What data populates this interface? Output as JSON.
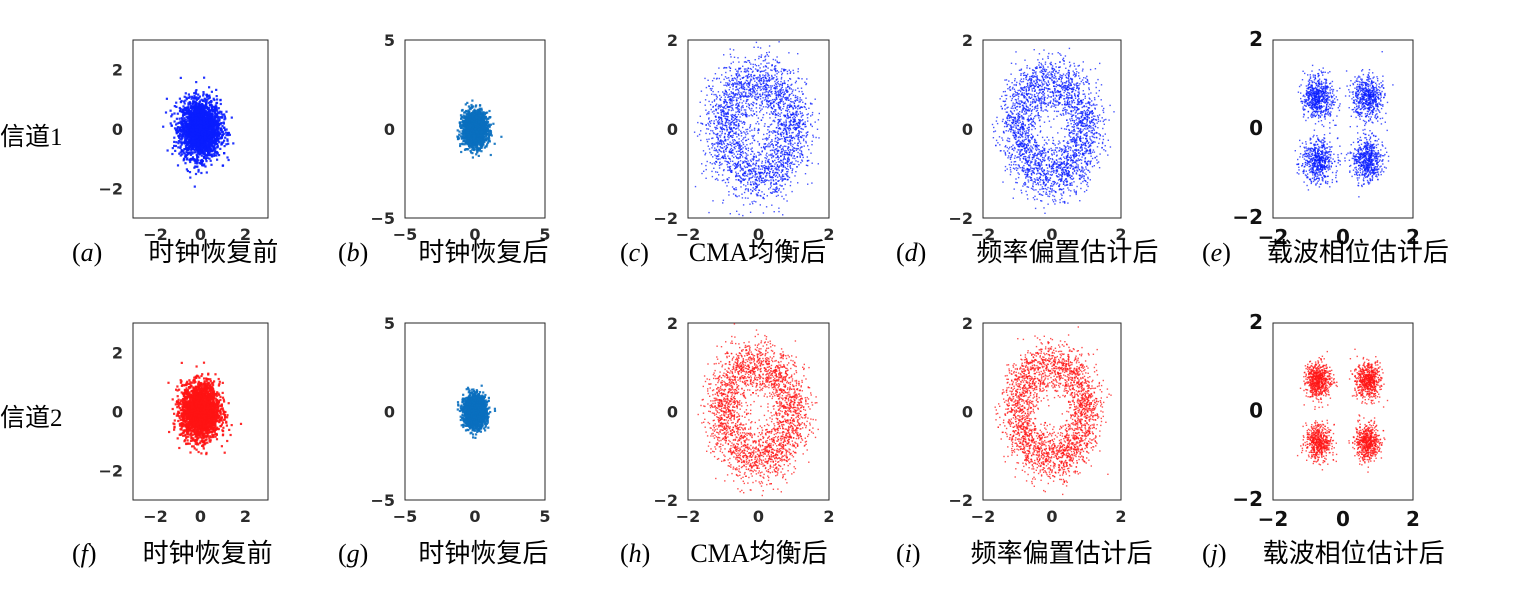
{
  "rows": [
    {
      "label": "信道1"
    },
    {
      "label": "信道2"
    }
  ],
  "colors": {
    "channel1": "#0a1eff",
    "channel2": "#ff1414",
    "resampled": "#0a6fbf"
  },
  "chart_data": [
    {
      "id": "a",
      "type": "scatter",
      "row": 0,
      "col": 0,
      "letter": "a",
      "label": "时钟恢复前",
      "shape": "disc",
      "color": "#0a1eff",
      "rx": 1.05,
      "ry": 1.15,
      "points": 2600,
      "xlim": [
        -3,
        3
      ],
      "ylim": [
        -3,
        3
      ],
      "xticks": [
        -2,
        0,
        2
      ],
      "yticks": [
        -2,
        0,
        2
      ]
    },
    {
      "id": "b",
      "type": "scatter",
      "row": 0,
      "col": 1,
      "letter": "b",
      "label": "时钟恢复后",
      "shape": "disc",
      "color": "#0a6fbf",
      "rx": 1.05,
      "ry": 1.15,
      "points": 1800,
      "xlim": [
        -5,
        5
      ],
      "ylim": [
        -5,
        5
      ],
      "xticks": [
        -5,
        0,
        5
      ],
      "yticks": [
        -5,
        0,
        5
      ]
    },
    {
      "id": "c",
      "type": "scatter",
      "row": 0,
      "col": 2,
      "letter": "c",
      "label": "CMA均衡后",
      "shape": "ring",
      "color": "#0a1eff",
      "radius": 1.0,
      "spread": 0.32,
      "points": 2600,
      "xlim": [
        -2,
        2
      ],
      "ylim": [
        -2,
        2
      ],
      "xticks": [
        -2,
        0,
        2
      ],
      "yticks": [
        -2,
        0,
        2
      ]
    },
    {
      "id": "d",
      "type": "scatter",
      "row": 0,
      "col": 3,
      "letter": "d",
      "label": "频率偏置估计后",
      "shape": "ring",
      "color": "#0a1eff",
      "radius": 1.0,
      "spread": 0.28,
      "points": 2600,
      "xlim": [
        -2,
        2
      ],
      "ylim": [
        -2,
        2
      ],
      "xticks": [
        -2,
        0,
        2
      ],
      "yticks": [
        -2,
        0,
        2
      ]
    },
    {
      "id": "e",
      "type": "scatter",
      "row": 0,
      "col": 4,
      "letter": "e",
      "label": "载波相位估计后",
      "shape": "qpsk",
      "color": "#0a1eff",
      "centers": [
        [
          -0.7,
          0.7
        ],
        [
          0.7,
          0.7
        ],
        [
          -0.7,
          -0.7
        ],
        [
          0.7,
          -0.7
        ]
      ],
      "spread": 0.22,
      "points": 2400,
      "xlim": [
        -2,
        2
      ],
      "ylim": [
        -2,
        2
      ],
      "xticks": [
        -2,
        0,
        2
      ],
      "yticks": [
        -2,
        0,
        2
      ]
    },
    {
      "id": "f",
      "type": "scatter",
      "row": 1,
      "col": 0,
      "letter": "f",
      "label": "时钟恢复前",
      "shape": "disc",
      "color": "#ff1414",
      "rx": 1.0,
      "ry": 1.1,
      "points": 2600,
      "xlim": [
        -3,
        3
      ],
      "ylim": [
        -3,
        3
      ],
      "xticks": [
        -2,
        0,
        2
      ],
      "yticks": [
        -2,
        0,
        2
      ]
    },
    {
      "id": "g",
      "type": "scatter",
      "row": 1,
      "col": 1,
      "letter": "g",
      "label": "时钟恢复后",
      "shape": "disc",
      "color": "#0a6fbf",
      "rx": 0.95,
      "ry": 1.05,
      "points": 1800,
      "xlim": [
        -5,
        5
      ],
      "ylim": [
        -5,
        5
      ],
      "xticks": [
        -5,
        0,
        5
      ],
      "yticks": [
        -5,
        0,
        5
      ]
    },
    {
      "id": "h",
      "type": "scatter",
      "row": 1,
      "col": 2,
      "letter": "h",
      "label": "CMA均衡后",
      "shape": "ring",
      "color": "#ff1414",
      "radius": 1.0,
      "spread": 0.28,
      "points": 2600,
      "xlim": [
        -2,
        2
      ],
      "ylim": [
        -2,
        2
      ],
      "xticks": [
        -2,
        0,
        2
      ],
      "yticks": [
        -2,
        0,
        2
      ]
    },
    {
      "id": "i",
      "type": "scatter",
      "row": 1,
      "col": 3,
      "letter": "i",
      "label": "频率偏置估计后",
      "shape": "ring",
      "color": "#ff1414",
      "radius": 1.0,
      "spread": 0.25,
      "points": 2600,
      "xlim": [
        -2,
        2
      ],
      "ylim": [
        -2,
        2
      ],
      "xticks": [
        -2,
        0,
        2
      ],
      "yticks": [
        -2,
        0,
        2
      ]
    },
    {
      "id": "j",
      "type": "scatter",
      "row": 1,
      "col": 4,
      "letter": "j",
      "label": "载波相位估计后",
      "shape": "qpsk",
      "color": "#ff1414",
      "centers": [
        [
          -0.7,
          0.7
        ],
        [
          0.7,
          0.7
        ],
        [
          -0.7,
          -0.7
        ],
        [
          0.7,
          -0.7
        ]
      ],
      "spread": 0.18,
      "points": 2400,
      "xlim": [
        -2,
        2
      ],
      "ylim": [
        -2,
        2
      ],
      "xticks": [
        -2,
        0,
        2
      ],
      "yticks": [
        -2,
        0,
        2
      ]
    }
  ]
}
